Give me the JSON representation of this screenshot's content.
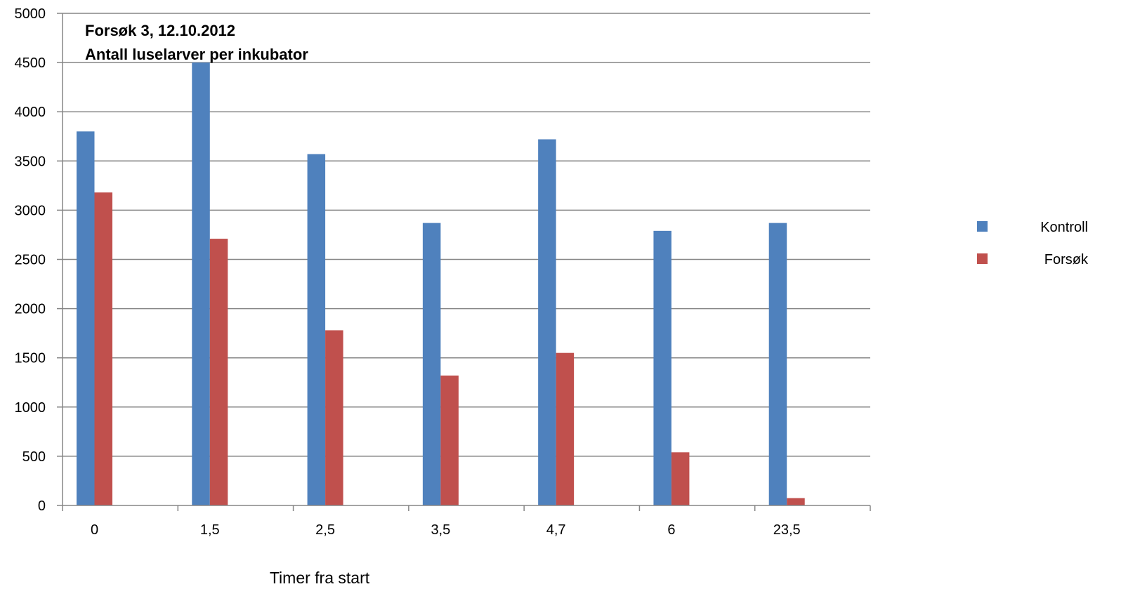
{
  "chart_data": {
    "type": "bar",
    "title": [
      "Forsøk 3, 12.10.2012",
      "Antall luselarver per inkubator"
    ],
    "xlabel": "Timer fra start",
    "ylabel": "",
    "categories": [
      "0",
      "1,5",
      "2,5",
      "3,5",
      "4,7",
      "6",
      "23,5"
    ],
    "series": [
      {
        "name": "Kontroll",
        "color": "#4F81BD",
        "values": [
          3800,
          4500,
          3570,
          2870,
          3720,
          2790,
          2870
        ]
      },
      {
        "name": "Forsøk",
        "color": "#C0504D",
        "values": [
          3180,
          2710,
          1780,
          1320,
          1550,
          540,
          75
        ]
      }
    ],
    "ylim": [
      0,
      5000
    ],
    "yticks": [
      0,
      500,
      1000,
      1500,
      2000,
      2500,
      3000,
      3500,
      4000,
      4500,
      5000
    ],
    "grid": true,
    "legend": "right"
  }
}
